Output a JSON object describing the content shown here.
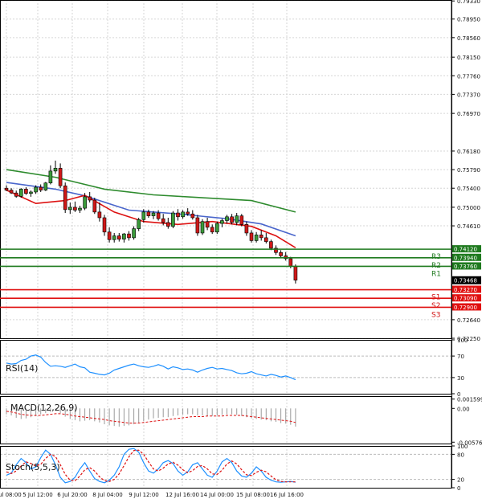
{
  "chart_data": [
    {
      "type": "candlestick",
      "panel": "price",
      "ylim": [
        0.7225,
        0.7935
      ],
      "y_tick_labels": [
        "0.79330",
        "0.78950",
        "0.78560",
        "0.78150",
        "0.77760",
        "0.77370",
        "0.76970",
        "0.76180",
        "0.75790",
        "0.75400",
        "0.75000",
        "0.74610",
        "0.72640",
        "0.72250"
      ],
      "y_tick_values": [
        0.7933,
        0.7895,
        0.7856,
        0.7815,
        0.7776,
        0.7737,
        0.7697,
        0.7618,
        0.7579,
        0.754,
        0.75,
        0.7461,
        0.7264,
        0.7225
      ],
      "x_tick_labels": [
        "5 Jul 08:00",
        "5 Jul 12:00",
        "6 Jul 20:00",
        "8 Jul 04:00",
        "9 Jul 12:00",
        "12 Jul 16:00",
        "14 Jul 00:00",
        "15 Jul 08:00",
        "16 Jul 16:00"
      ],
      "candles": [
        {
          "o": 0.754,
          "h": 0.7546,
          "l": 0.7534,
          "c": 0.7536
        },
        {
          "o": 0.7536,
          "h": 0.754,
          "l": 0.7528,
          "c": 0.753
        },
        {
          "o": 0.753,
          "h": 0.7535,
          "l": 0.752,
          "c": 0.7523
        },
        {
          "o": 0.7523,
          "h": 0.754,
          "l": 0.752,
          "c": 0.7538
        },
        {
          "o": 0.7538,
          "h": 0.7542,
          "l": 0.7526,
          "c": 0.7529
        },
        {
          "o": 0.7529,
          "h": 0.7535,
          "l": 0.7522,
          "c": 0.7532
        },
        {
          "o": 0.7532,
          "h": 0.7546,
          "l": 0.7528,
          "c": 0.7542
        },
        {
          "o": 0.7542,
          "h": 0.7548,
          "l": 0.7532,
          "c": 0.7536
        },
        {
          "o": 0.7536,
          "h": 0.7553,
          "l": 0.7534,
          "c": 0.7551
        },
        {
          "o": 0.7551,
          "h": 0.7588,
          "l": 0.7548,
          "c": 0.7576
        },
        {
          "o": 0.7576,
          "h": 0.7598,
          "l": 0.757,
          "c": 0.7582
        },
        {
          "o": 0.7582,
          "h": 0.7592,
          "l": 0.754,
          "c": 0.7545
        },
        {
          "o": 0.7545,
          "h": 0.7552,
          "l": 0.7488,
          "c": 0.7495
        },
        {
          "o": 0.7495,
          "h": 0.751,
          "l": 0.7486,
          "c": 0.75
        },
        {
          "o": 0.75,
          "h": 0.7512,
          "l": 0.749,
          "c": 0.7494
        },
        {
          "o": 0.7494,
          "h": 0.7503,
          "l": 0.7488,
          "c": 0.7498
        },
        {
          "o": 0.7498,
          "h": 0.753,
          "l": 0.7494,
          "c": 0.7522
        },
        {
          "o": 0.7522,
          "h": 0.7532,
          "l": 0.751,
          "c": 0.7515
        },
        {
          "o": 0.7515,
          "h": 0.752,
          "l": 0.7486,
          "c": 0.749
        },
        {
          "o": 0.749,
          "h": 0.751,
          "l": 0.747,
          "c": 0.7478
        },
        {
          "o": 0.7478,
          "h": 0.7484,
          "l": 0.744,
          "c": 0.7448
        },
        {
          "o": 0.7448,
          "h": 0.7458,
          "l": 0.7426,
          "c": 0.7432
        },
        {
          "o": 0.7432,
          "h": 0.7446,
          "l": 0.7426,
          "c": 0.744
        },
        {
          "o": 0.744,
          "h": 0.7446,
          "l": 0.7428,
          "c": 0.7433
        },
        {
          "o": 0.7433,
          "h": 0.7446,
          "l": 0.7426,
          "c": 0.7444
        },
        {
          "o": 0.7444,
          "h": 0.745,
          "l": 0.743,
          "c": 0.7436
        },
        {
          "o": 0.7436,
          "h": 0.746,
          "l": 0.7432,
          "c": 0.7455
        },
        {
          "o": 0.7455,
          "h": 0.7478,
          "l": 0.745,
          "c": 0.7474
        },
        {
          "o": 0.7474,
          "h": 0.7496,
          "l": 0.7468,
          "c": 0.749
        },
        {
          "o": 0.749,
          "h": 0.7495,
          "l": 0.7478,
          "c": 0.7482
        },
        {
          "o": 0.7482,
          "h": 0.7492,
          "l": 0.7475,
          "c": 0.7488
        },
        {
          "o": 0.7488,
          "h": 0.7494,
          "l": 0.7472,
          "c": 0.7476
        },
        {
          "o": 0.7476,
          "h": 0.7486,
          "l": 0.7462,
          "c": 0.7468
        },
        {
          "o": 0.7468,
          "h": 0.7478,
          "l": 0.7455,
          "c": 0.746
        },
        {
          "o": 0.746,
          "h": 0.7492,
          "l": 0.7456,
          "c": 0.7488
        },
        {
          "o": 0.7488,
          "h": 0.7496,
          "l": 0.7472,
          "c": 0.748
        },
        {
          "o": 0.748,
          "h": 0.7494,
          "l": 0.7476,
          "c": 0.749
        },
        {
          "o": 0.749,
          "h": 0.7498,
          "l": 0.7482,
          "c": 0.7486
        },
        {
          "o": 0.7486,
          "h": 0.7494,
          "l": 0.7474,
          "c": 0.7478
        },
        {
          "o": 0.7478,
          "h": 0.7484,
          "l": 0.744,
          "c": 0.7446
        },
        {
          "o": 0.7446,
          "h": 0.7475,
          "l": 0.7442,
          "c": 0.747
        },
        {
          "o": 0.747,
          "h": 0.7478,
          "l": 0.7452,
          "c": 0.7458
        },
        {
          "o": 0.7458,
          "h": 0.7464,
          "l": 0.7444,
          "c": 0.7448
        },
        {
          "o": 0.7448,
          "h": 0.747,
          "l": 0.7444,
          "c": 0.7466
        },
        {
          "o": 0.7466,
          "h": 0.7476,
          "l": 0.7458,
          "c": 0.7472
        },
        {
          "o": 0.7472,
          "h": 0.7484,
          "l": 0.7466,
          "c": 0.748
        },
        {
          "o": 0.748,
          "h": 0.7486,
          "l": 0.7464,
          "c": 0.7468
        },
        {
          "o": 0.7468,
          "h": 0.7488,
          "l": 0.7462,
          "c": 0.7482
        },
        {
          "o": 0.7482,
          "h": 0.7486,
          "l": 0.746,
          "c": 0.7464
        },
        {
          "o": 0.7464,
          "h": 0.747,
          "l": 0.744,
          "c": 0.7446
        },
        {
          "o": 0.7446,
          "h": 0.7452,
          "l": 0.7426,
          "c": 0.743
        },
        {
          "o": 0.743,
          "h": 0.7448,
          "l": 0.7426,
          "c": 0.7442
        },
        {
          "o": 0.7442,
          "h": 0.7452,
          "l": 0.743,
          "c": 0.7436
        },
        {
          "o": 0.7436,
          "h": 0.7446,
          "l": 0.7424,
          "c": 0.7428
        },
        {
          "o": 0.7428,
          "h": 0.7432,
          "l": 0.741,
          "c": 0.7414
        },
        {
          "o": 0.7414,
          "h": 0.742,
          "l": 0.74,
          "c": 0.7405
        },
        {
          "o": 0.7405,
          "h": 0.741,
          "l": 0.7394,
          "c": 0.7398
        },
        {
          "o": 0.7398,
          "h": 0.7406,
          "l": 0.7388,
          "c": 0.7392
        },
        {
          "o": 0.7392,
          "h": 0.7396,
          "l": 0.7372,
          "c": 0.7376
        },
        {
          "o": 0.7376,
          "h": 0.738,
          "l": 0.734,
          "c": 0.7347
        }
      ],
      "moving_averages": [
        {
          "color": "#2e8b2e",
          "points": [
            [
              0,
              0.7579
            ],
            [
              10,
              0.7563
            ],
            [
              20,
              0.7538
            ],
            [
              30,
              0.7526
            ],
            [
              40,
              0.752
            ],
            [
              50,
              0.7514
            ],
            [
              59,
              0.749
            ]
          ]
        },
        {
          "color": "#4a66cc",
          "points": [
            [
              0,
              0.7552
            ],
            [
              10,
              0.7538
            ],
            [
              16,
              0.7524
            ],
            [
              25,
              0.7494
            ],
            [
              35,
              0.7486
            ],
            [
              45,
              0.7476
            ],
            [
              52,
              0.7465
            ],
            [
              59,
              0.744
            ]
          ]
        },
        {
          "color": "#dd1111",
          "points": [
            [
              0,
              0.7536
            ],
            [
              6,
              0.7508
            ],
            [
              12,
              0.7514
            ],
            [
              16,
              0.7525
            ],
            [
              22,
              0.749
            ],
            [
              28,
              0.747
            ],
            [
              35,
              0.7464
            ],
            [
              42,
              0.747
            ],
            [
              50,
              0.746
            ],
            [
              55,
              0.744
            ],
            [
              59,
              0.7415
            ]
          ]
        }
      ],
      "current_price": "0.73468",
      "resistance": [
        {
          "label": "R3",
          "price_label": "0.74120",
          "value": 0.7412
        },
        {
          "label": "R2",
          "price_label": "0.73940",
          "value": 0.7394
        },
        {
          "label": "R1",
          "price_label": "0.73760",
          "value": 0.7376
        }
      ],
      "support": [
        {
          "label": "S1",
          "price_label": "0.73270",
          "value": 0.7327
        },
        {
          "label": "S2",
          "price_label": "0.73090",
          "value": 0.7309
        },
        {
          "label": "S3",
          "price_label": "0.72900",
          "value": 0.729
        }
      ]
    },
    {
      "type": "line",
      "panel": "rsi",
      "title": "RSI(14)",
      "ylim": [
        0,
        100
      ],
      "y_tick_labels": [
        "100",
        "70",
        "30",
        "0"
      ],
      "y_tick_values": [
        100,
        70,
        30,
        0
      ],
      "series": [
        {
          "color": "#1e90ff",
          "values": [
            57,
            55,
            56,
            62,
            64,
            70,
            72,
            68,
            58,
            51,
            52,
            51,
            49,
            52,
            55,
            50,
            48,
            40,
            38,
            36,
            35,
            38,
            44,
            47,
            50,
            53,
            55,
            52,
            50,
            49,
            51,
            54,
            51,
            46,
            50,
            48,
            45,
            46,
            44,
            40,
            44,
            47,
            49,
            46,
            47,
            45,
            43,
            39,
            37,
            38,
            41,
            37,
            35,
            33,
            36,
            34,
            31,
            33,
            30,
            26
          ]
        }
      ]
    },
    {
      "type": "bar",
      "panel": "macd",
      "title": "MACD(12,26,9)",
      "ylim": [
        -0.006,
        0.0021
      ],
      "y_tick_labels": [
        "0.001599",
        "0.00",
        "-0.005765"
      ],
      "y_tick_values": [
        0.001599,
        0,
        -0.005765
      ],
      "histogram": [
        -0.001,
        -0.0012,
        -0.0016,
        -0.0018,
        -0.0017,
        -0.0015,
        -0.0013,
        -0.001,
        -0.0008,
        -0.0006,
        -0.0004,
        -0.0008,
        -0.0014,
        -0.0018,
        -0.002,
        -0.0022,
        -0.0021,
        -0.002,
        -0.0022,
        -0.0024,
        -0.0027,
        -0.0029,
        -0.003,
        -0.0031,
        -0.003,
        -0.0029,
        -0.0027,
        -0.0025,
        -0.0022,
        -0.0019,
        -0.0017,
        -0.0016,
        -0.0015,
        -0.0015,
        -0.0013,
        -0.0012,
        -0.0011,
        -0.001,
        -0.001,
        -0.0012,
        -0.0012,
        -0.0013,
        -0.0013,
        -0.0012,
        -0.0011,
        -0.001,
        -0.001,
        -0.0011,
        -0.0013,
        -0.0015,
        -0.0017,
        -0.0018,
        -0.0019,
        -0.002,
        -0.0022,
        -0.0023,
        -0.0025,
        -0.0026,
        -0.0028,
        -0.0031
      ],
      "signal": [
        -0.0005,
        -0.0006,
        -0.0008,
        -0.001,
        -0.0011,
        -0.0012,
        -0.0012,
        -0.0012,
        -0.0011,
        -0.001,
        -0.0009,
        -0.0009,
        -0.001,
        -0.0011,
        -0.0013,
        -0.0014,
        -0.0015,
        -0.0016,
        -0.0017,
        -0.0018,
        -0.0019,
        -0.0021,
        -0.0022,
        -0.0023,
        -0.0024,
        -0.0025,
        -0.0025,
        -0.0025,
        -0.0024,
        -0.0023,
        -0.0022,
        -0.0021,
        -0.002,
        -0.0019,
        -0.0018,
        -0.0017,
        -0.0016,
        -0.0015,
        -0.0014,
        -0.0014,
        -0.0014,
        -0.0013,
        -0.0013,
        -0.0013,
        -0.0013,
        -0.0012,
        -0.0012,
        -0.0012,
        -0.0012,
        -0.0013,
        -0.0014,
        -0.0015,
        -0.0016,
        -0.0017,
        -0.0018,
        -0.0019,
        -0.002,
        -0.0021,
        -0.0022,
        -0.0024
      ]
    },
    {
      "type": "line",
      "panel": "stochastic",
      "title": "Stoch(5,5,3)",
      "ylim": [
        0,
        100
      ],
      "y_tick_labels": [
        "100",
        "80",
        "20",
        "0"
      ],
      "y_tick_values": [
        100,
        80,
        20,
        0
      ],
      "series": [
        {
          "color": "#1e90ff",
          "values": [
            30,
            35,
            55,
            70,
            60,
            45,
            50,
            72,
            90,
            80,
            55,
            25,
            12,
            15,
            25,
            45,
            60,
            40,
            22,
            15,
            12,
            18,
            30,
            50,
            80,
            92,
            94,
            85,
            60,
            40,
            35,
            45,
            60,
            65,
            58,
            40,
            30,
            38,
            55,
            60,
            45,
            30,
            25,
            40,
            62,
            70,
            60,
            40,
            28,
            25,
            35,
            50,
            40,
            25,
            18,
            14,
            13,
            14,
            15,
            13
          ]
        },
        {
          "color": "#dd1111",
          "dashed": true,
          "values": [
            38,
            34,
            40,
            52,
            62,
            58,
            52,
            56,
            70,
            80,
            75,
            55,
            32,
            18,
            17,
            28,
            43,
            48,
            40,
            26,
            17,
            15,
            20,
            33,
            53,
            74,
            89,
            90,
            80,
            62,
            45,
            40,
            47,
            57,
            61,
            54,
            43,
            36,
            41,
            51,
            53,
            45,
            33,
            32,
            42,
            57,
            64,
            57,
            43,
            31,
            29,
            37,
            42,
            38,
            28,
            19,
            15,
            14,
            14,
            14
          ]
        }
      ]
    }
  ]
}
